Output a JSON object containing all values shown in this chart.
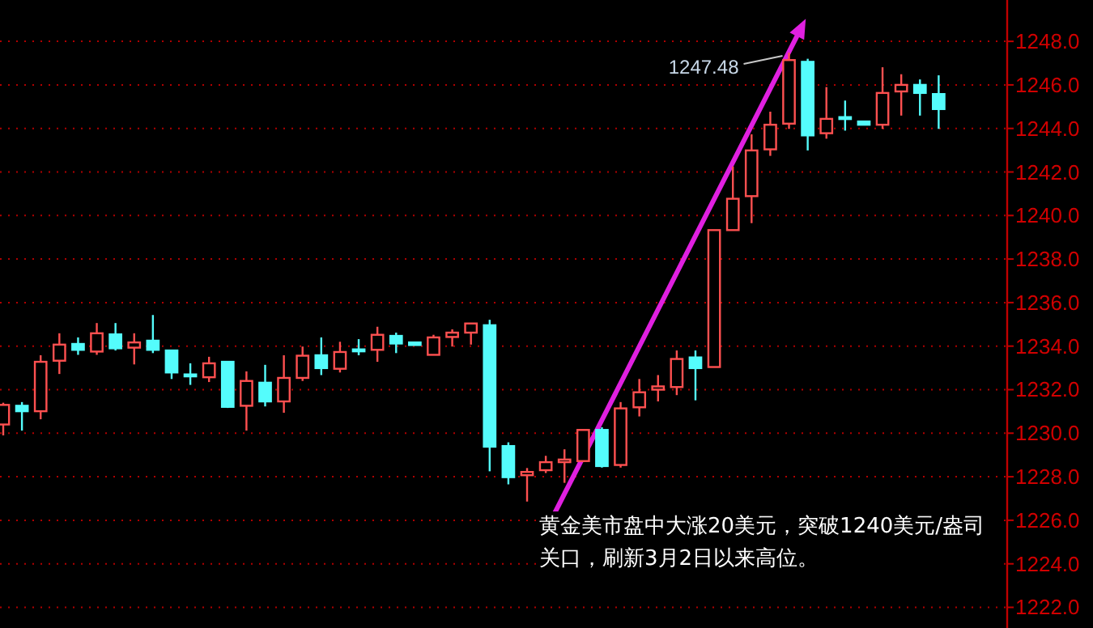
{
  "chart_data": {
    "type": "candlestick",
    "categories": [
      null,
      null,
      null,
      null,
      null,
      null,
      null,
      null,
      null,
      null,
      null,
      null,
      null,
      null,
      null,
      null,
      null,
      null,
      null,
      null,
      null,
      null,
      null,
      null,
      null,
      null,
      null,
      null,
      null,
      null,
      null,
      null,
      null,
      null,
      null,
      null,
      null,
      null,
      null,
      null,
      null,
      null,
      null,
      null,
      null,
      null,
      null,
      null,
      null,
      null,
      null
    ],
    "ohlc": [
      [
        1230.4,
        1231.4,
        1229.9,
        1231.3
      ],
      [
        1231.26,
        1231.43,
        1230.12,
        1231.01
      ],
      [
        1231.01,
        1233.58,
        1230.64,
        1233.28
      ],
      [
        1233.33,
        1234.59,
        1232.72,
        1234.07
      ],
      [
        1234.1,
        1234.4,
        1233.6,
        1233.83
      ],
      [
        1233.75,
        1235.06,
        1233.6,
        1234.59
      ],
      [
        1234.54,
        1235.06,
        1233.8,
        1233.9
      ],
      [
        1233.93,
        1234.59,
        1233.16,
        1234.17
      ],
      [
        1234.25,
        1235.43,
        1233.68,
        1233.83
      ],
      [
        1233.8,
        1233.8,
        1232.49,
        1232.79
      ],
      [
        1232.7,
        1233.21,
        1232.22,
        1232.67
      ],
      [
        1232.57,
        1233.51,
        1232.35,
        1233.21
      ],
      [
        1233.28,
        1233.28,
        1231.16,
        1231.21
      ],
      [
        1231.26,
        1232.84,
        1230.12,
        1232.4
      ],
      [
        1232.32,
        1233.14,
        1231.23,
        1231.46
      ],
      [
        1231.46,
        1233.58,
        1230.94,
        1232.54
      ],
      [
        1232.54,
        1233.98,
        1232.4,
        1233.56
      ],
      [
        1233.58,
        1234.4,
        1232.67,
        1232.99
      ],
      [
        1232.96,
        1234.2,
        1232.79,
        1233.73
      ],
      [
        1233.85,
        1234.32,
        1233.58,
        1233.8
      ],
      [
        1233.83,
        1234.89,
        1233.28,
        1234.52
      ],
      [
        1234.47,
        1234.62,
        1233.68,
        1234.12
      ],
      [
        1234.17,
        1234.17,
        1234.05,
        1234.05
      ],
      [
        1233.6,
        1234.52,
        1233.6,
        1234.4
      ],
      [
        1234.42,
        1234.77,
        1233.98,
        1234.62
      ],
      [
        1234.62,
        1235.04,
        1234.07,
        1235.04
      ],
      [
        1234.96,
        1235.21,
        1228.25,
        1229.38
      ],
      [
        1229.41,
        1229.58,
        1227.65,
        1227.98
      ],
      [
        1228.07,
        1228.4,
        1226.86,
        1228.22
      ],
      [
        1228.3,
        1228.96,
        1228.17,
        1228.67
      ],
      [
        1228.67,
        1229.26,
        1227.72,
        1228.79
      ],
      [
        1228.72,
        1230.15,
        1228.67,
        1230.15
      ],
      [
        1230.15,
        1230.27,
        1228.42,
        1228.49
      ],
      [
        1228.54,
        1231.43,
        1228.42,
        1231.14
      ],
      [
        1231.19,
        1232.49,
        1230.77,
        1231.88
      ],
      [
        1232.0,
        1232.67,
        1231.46,
        1232.15
      ],
      [
        1232.12,
        1233.8,
        1231.75,
        1233.41
      ],
      [
        1233.48,
        1233.8,
        1231.51,
        1232.99
      ],
      [
        1233.04,
        1239.33,
        1233.04,
        1239.33
      ],
      [
        1239.33,
        1242.25,
        1239.33,
        1240.77
      ],
      [
        1240.89,
        1243.73,
        1239.65,
        1242.99
      ],
      [
        1243.04,
        1244.77,
        1242.74,
        1244.17
      ],
      [
        1244.22,
        1247.48,
        1243.98,
        1247.14
      ],
      [
        1247.06,
        1247.2,
        1242.99,
        1243.68
      ],
      [
        1243.78,
        1245.9,
        1243.53,
        1244.44
      ],
      [
        1244.52,
        1245.28,
        1243.9,
        1244.47
      ],
      [
        1244.32,
        1244.32,
        1244.17,
        1244.17
      ],
      [
        1244.17,
        1246.81,
        1243.98,
        1245.63
      ],
      [
        1245.7,
        1246.49,
        1244.59,
        1246.0
      ],
      [
        1246.0,
        1246.25,
        1244.59,
        1245.63
      ],
      [
        1245.58,
        1246.44,
        1243.98,
        1244.89
      ]
    ],
    "colors": [
      "#ff5050",
      "#54fcfc",
      "#ff5050",
      "#ff5050",
      "#54fcfc",
      "#ff5050",
      "#54fcfc",
      "#ff5050",
      "#54fcfc",
      "#54fcfc",
      "#54fcfc",
      "#ff5050",
      "#54fcfc",
      "#ff5050",
      "#54fcfc",
      "#ff5050",
      "#ff5050",
      "#54fcfc",
      "#ff5050",
      "#54fcfc",
      "#ff5050",
      "#54fcfc",
      "#54fcfc",
      "#ff5050",
      "#ff5050",
      "#ff5050",
      "#54fcfc",
      "#54fcfc",
      "#ff5050",
      "#ff5050",
      "#ff5050",
      "#ff5050",
      "#54fcfc",
      "#ff5050",
      "#ff5050",
      "#ff5050",
      "#ff5050",
      "#54fcfc",
      "#ff5050",
      "#ff5050",
      "#ff5050",
      "#ff5050",
      "#ff5050",
      "#54fcfc",
      "#ff5050",
      "#54fcfc",
      "#54fcfc",
      "#ff5050",
      "#ff5050",
      "#54fcfc",
      "#54fcfc"
    ],
    "ylim": [
      1221.2,
      1249.9
    ],
    "yticks": [
      {
        "value": 1222,
        "label": "1222.0"
      },
      {
        "value": 1224,
        "label": "1224.0"
      },
      {
        "value": 1226,
        "label": "1226.0"
      },
      {
        "value": 1228,
        "label": "1228.0"
      },
      {
        "value": 1230,
        "label": "1230.0"
      },
      {
        "value": 1232,
        "label": "1232.0"
      },
      {
        "value": 1234,
        "label": "1234.0"
      },
      {
        "value": 1236,
        "label": "1236.0"
      },
      {
        "value": 1238,
        "label": "1238.0"
      },
      {
        "value": 1240,
        "label": "1240.0"
      },
      {
        "value": 1242,
        "label": "1242.0"
      },
      {
        "value": 1244,
        "label": "1244.0"
      },
      {
        "value": 1246,
        "label": "1246.0"
      },
      {
        "value": 1248,
        "label": "1248.0"
      }
    ],
    "grid": "y",
    "annotations": [
      "1247.48",
      "黄金美市盘中大涨20美元，突破1240美元/盎司关口，刷新3月2日以来高位。"
    ]
  }
}
